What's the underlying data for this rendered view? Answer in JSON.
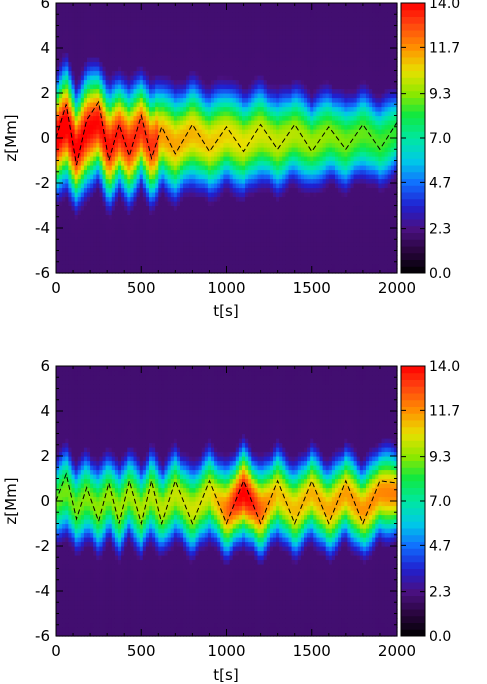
{
  "chart_data": [
    {
      "type": "heatmap",
      "xlabel": "t[s]",
      "ylabel": "z[Mm]",
      "xlim": [
        0,
        2000
      ],
      "ylim": [
        -6,
        6
      ],
      "xticks": [
        "0",
        "500",
        "1000",
        "1500",
        "2000"
      ],
      "yticks": [
        "-6",
        "-4",
        "-2",
        "0",
        "2",
        "4",
        "6"
      ],
      "colorbar_labels": [
        "0.0",
        "2.3",
        "4.7",
        "7.0",
        "9.3",
        "11.7",
        "14.0"
      ],
      "colorbar_range": [
        0,
        14
      ],
      "dashed_centroid": {
        "t": [
          0,
          60,
          120,
          180,
          250,
          310,
          370,
          430,
          500,
          560,
          620,
          700,
          800,
          900,
          1000,
          1100,
          1200,
          1300,
          1400,
          1500,
          1600,
          1700,
          1800,
          1900,
          2000
        ],
        "z": [
          0.0,
          1.5,
          -1.2,
          0.8,
          1.6,
          -1.0,
          0.6,
          -0.8,
          1.0,
          -0.9,
          0.5,
          -0.7,
          0.6,
          -0.6,
          0.5,
          -0.6,
          0.6,
          -0.5,
          0.6,
          -0.6,
          0.5,
          -0.5,
          0.6,
          -0.5,
          0.7
        ]
      },
      "band": {
        "period_s": 250,
        "amplitude_mm": [
          2.2,
          1.0
        ],
        "halfwidth_mm": 1.6,
        "peak_intensity": [
          13.0,
          8.5
        ]
      }
    },
    {
      "type": "heatmap",
      "xlabel": "t[s]",
      "ylabel": "z[Mm]",
      "xlim": [
        0,
        2000
      ],
      "ylim": [
        -6,
        6
      ],
      "xticks": [
        "0",
        "500",
        "1000",
        "1500",
        "2000"
      ],
      "yticks": [
        "-6",
        "-4",
        "-2",
        "0",
        "2",
        "4",
        "6"
      ],
      "colorbar_labels": [
        "0.0",
        "2.3",
        "4.7",
        "7.0",
        "9.3",
        "11.7",
        "14.0"
      ],
      "colorbar_range": [
        0,
        14
      ],
      "dashed_centroid": {
        "t": [
          0,
          60,
          120,
          180,
          250,
          310,
          370,
          430,
          500,
          560,
          620,
          700,
          800,
          900,
          1000,
          1100,
          1200,
          1300,
          1400,
          1500,
          1600,
          1700,
          1800,
          1900,
          2000
        ],
        "z": [
          0.0,
          1.2,
          -0.8,
          0.6,
          -0.9,
          0.8,
          -1.0,
          0.9,
          -1.0,
          0.9,
          -1.0,
          0.9,
          -1.0,
          0.9,
          -1.0,
          0.9,
          -1.0,
          0.9,
          -1.0,
          0.9,
          -1.0,
          0.9,
          -1.0,
          0.9,
          0.8
        ]
      },
      "band": {
        "period_s": 210,
        "amplitude_mm": [
          1.2,
          1.2
        ],
        "halfwidth_mm": 1.5,
        "peak_intensity": [
          9.0,
          12.0
        ]
      }
    }
  ]
}
